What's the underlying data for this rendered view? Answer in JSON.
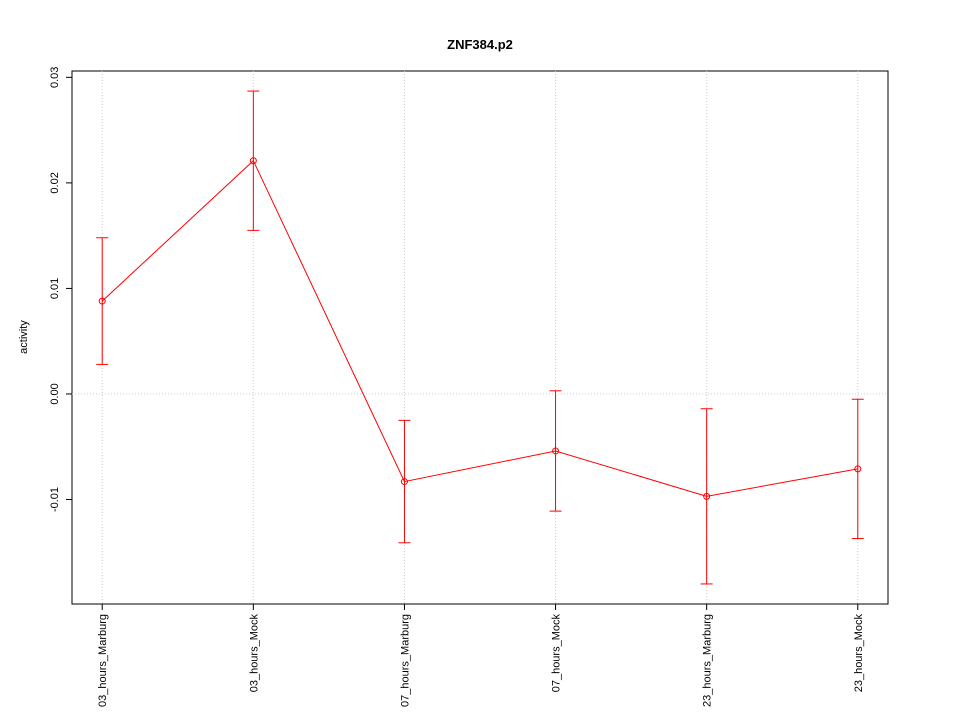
{
  "chart_data": {
    "type": "line",
    "title": "ZNF384.p2",
    "y_label": "activity",
    "categories": [
      "03_hours_Marburg",
      "03_hours_Mock",
      "07_hours_Marburg",
      "07_hours_Mock",
      "23_hours_Marburg",
      "23_hours_Mock"
    ],
    "series": [
      {
        "name": "activity",
        "color": "#ff0000",
        "values": [
          0.0088,
          0.0221,
          -0.0083,
          -0.0054,
          -0.0097,
          -0.0071
        ],
        "errors": [
          0.006,
          0.0066,
          0.0058,
          0.0057,
          0.0083,
          0.0066
        ]
      }
    ],
    "ylim": [
      -0.0199,
      0.0306
    ],
    "yticks": [
      {
        "value": -0.01,
        "label": "-0.01"
      },
      {
        "value": 0,
        "label": "0.00"
      },
      {
        "value": 0.01,
        "label": "0.01"
      },
      {
        "value": 0.02,
        "label": "0.02"
      },
      {
        "value": 0.03,
        "label": "0.03"
      }
    ],
    "grid": "x",
    "hline": 0
  }
}
